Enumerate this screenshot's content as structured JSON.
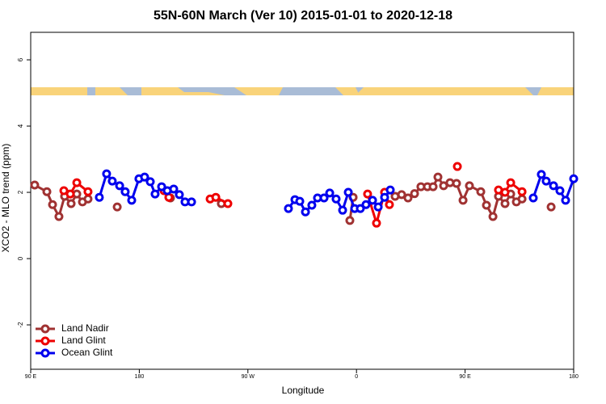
{
  "chart_data": {
    "type": "line",
    "title": "55N-60N March (Ver 10)   2015-01-01 to 2020-12-18",
    "x_label": "Longitude",
    "y_label": "XCO2 - MLO trend (ppm)",
    "xlim": [
      90,
      540
    ],
    "xticks": [
      {
        "value": 90,
        "label": "90 E"
      },
      180,
      {
        "value": 270,
        "label": "90 W"
      },
      {
        "value": 360,
        "label": "0"
      },
      {
        "value": 450,
        "label": "90 E"
      },
      {
        "value": 540,
        "label": "180"
      }
    ],
    "ylim": [
      -3.34,
      6.83
    ],
    "yticks": [
      -2,
      0,
      2,
      4,
      6
    ],
    "legend": "bottom-left",
    "series": [
      {
        "name": "Land Nadir",
        "color": "#a03232",
        "x": [
          93.3,
          103.4,
          108.1,
          113.4,
          118.1,
          123.5,
          128.2,
          132.9,
          137.5,
          null,
          161.7,
          null,
          205.8,
          null,
          248.0,
          null,
          354.5,
          357.2,
          null,
          392.0,
          397.4,
          402.7,
          408.1,
          413.4,
          418.8,
          423.5,
          427.5,
          432.2,
          437.5,
          442.9,
          448.3,
          453.6,
          463.0,
          467.7,
          473.1,
          477.7,
          483.1,
          487.8,
          492.5,
          497.2,
          null,
          521.3
        ],
        "values": [
          2.22,
          2.02,
          1.63,
          1.27,
          1.88,
          1.66,
          1.95,
          1.71,
          1.8,
          null,
          1.56,
          null,
          1.83,
          null,
          1.66,
          null,
          1.15,
          1.85,
          null,
          1.88,
          1.93,
          1.83,
          1.96,
          2.17,
          2.17,
          2.17,
          2.46,
          2.2,
          2.29,
          2.27,
          1.76,
          2.2,
          2.02,
          1.61,
          1.27,
          1.88,
          1.66,
          1.95,
          1.71,
          1.8,
          null,
          1.56
        ]
      },
      {
        "name": "Land Glint",
        "color": "#ee0000",
        "x": [
          117.5,
          122.8,
          128.2,
          137.5,
          null,
          200.5,
          204.5,
          null,
          238.7,
          243.4,
          253.4,
          null,
          369.2,
          376.6,
          383.3,
          387.3,
          null,
          443.6,
          null,
          477.7,
          483.1,
          487.8,
          497.2
        ],
        "values": [
          2.05,
          1.95,
          2.29,
          2.02,
          null,
          2.05,
          1.85,
          null,
          1.8,
          1.85,
          1.66,
          null,
          1.95,
          1.07,
          2.0,
          1.63,
          null,
          2.78,
          null,
          2.07,
          2.0,
          2.29,
          2.02
        ]
      },
      {
        "name": "Ocean Glint",
        "color": "#0000ee",
        "x": [
          146.9,
          152.9,
          157.6,
          163.7,
          168.3,
          173.7,
          179.7,
          184.4,
          189.1,
          193.1,
          198.5,
          203.2,
          208.5,
          213.2,
          217.9,
          223.3,
          null,
          303.6,
          309.0,
          313.0,
          317.7,
          323.0,
          327.7,
          333.1,
          337.8,
          343.1,
          348.5,
          353.2,
          358.5,
          363.2,
          367.9,
          373.3,
          378.0,
          383.3,
          388.0,
          null,
          506.5,
          513.2,
          517.2,
          523.3,
          528.6,
          533.3,
          540.0
        ],
        "values": [
          1.85,
          2.56,
          2.34,
          2.2,
          2.02,
          1.76,
          2.41,
          2.46,
          2.32,
          1.95,
          2.17,
          2.05,
          2.1,
          1.93,
          1.71,
          1.71,
          null,
          1.51,
          1.78,
          1.73,
          1.41,
          1.61,
          1.83,
          1.83,
          1.98,
          1.8,
          1.46,
          2.0,
          1.51,
          1.51,
          1.63,
          1.76,
          1.56,
          1.85,
          2.07,
          null,
          1.83,
          2.54,
          2.34,
          2.2,
          2.05,
          1.76,
          2.41
        ]
      }
    ]
  }
}
